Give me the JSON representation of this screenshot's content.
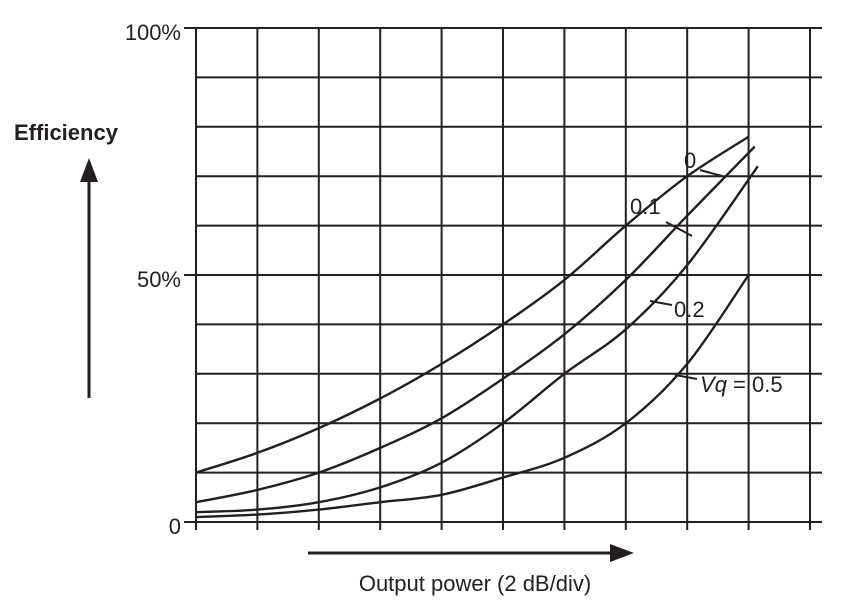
{
  "chart_data": {
    "type": "line",
    "title": "",
    "xlabel": "Output power (2 dB/div)",
    "ylabel": "Efficiency",
    "x_unit": "div",
    "xlim": [
      0,
      10
    ],
    "ylim": [
      0,
      100
    ],
    "y_tick_labels": [
      {
        "value": 0,
        "label": "0"
      },
      {
        "value": 50,
        "label": "50%"
      },
      {
        "value": 100,
        "label": "100%"
      }
    ],
    "grid": true,
    "series": [
      {
        "name": "0",
        "label_text": "0",
        "x": [
          0,
          1,
          2,
          3,
          4,
          5,
          6,
          7,
          8,
          9
        ],
        "y": [
          10,
          14,
          19,
          25,
          32,
          40,
          49,
          60,
          70,
          78
        ]
      },
      {
        "name": "0.1",
        "label_text": "0.1",
        "x": [
          0,
          1,
          2,
          3,
          4,
          5,
          6,
          7,
          8,
          9.1
        ],
        "y": [
          4,
          6.5,
          10,
          15,
          21,
          29,
          38,
          49,
          62,
          76
        ]
      },
      {
        "name": "0.2",
        "label_text": "0.2",
        "x": [
          0,
          1,
          2,
          3,
          4,
          5,
          6,
          7,
          8,
          9.15
        ],
        "y": [
          2,
          2.5,
          4,
          7,
          12,
          20,
          30,
          39,
          52,
          72
        ]
      },
      {
        "name": "0.5",
        "label_text": "Vq = 0.5",
        "x": [
          0,
          1,
          2,
          3,
          4,
          5,
          6,
          7,
          8,
          9
        ],
        "y": [
          1,
          1.5,
          2.5,
          4,
          5.5,
          9,
          13,
          20,
          32,
          50
        ]
      }
    ]
  }
}
